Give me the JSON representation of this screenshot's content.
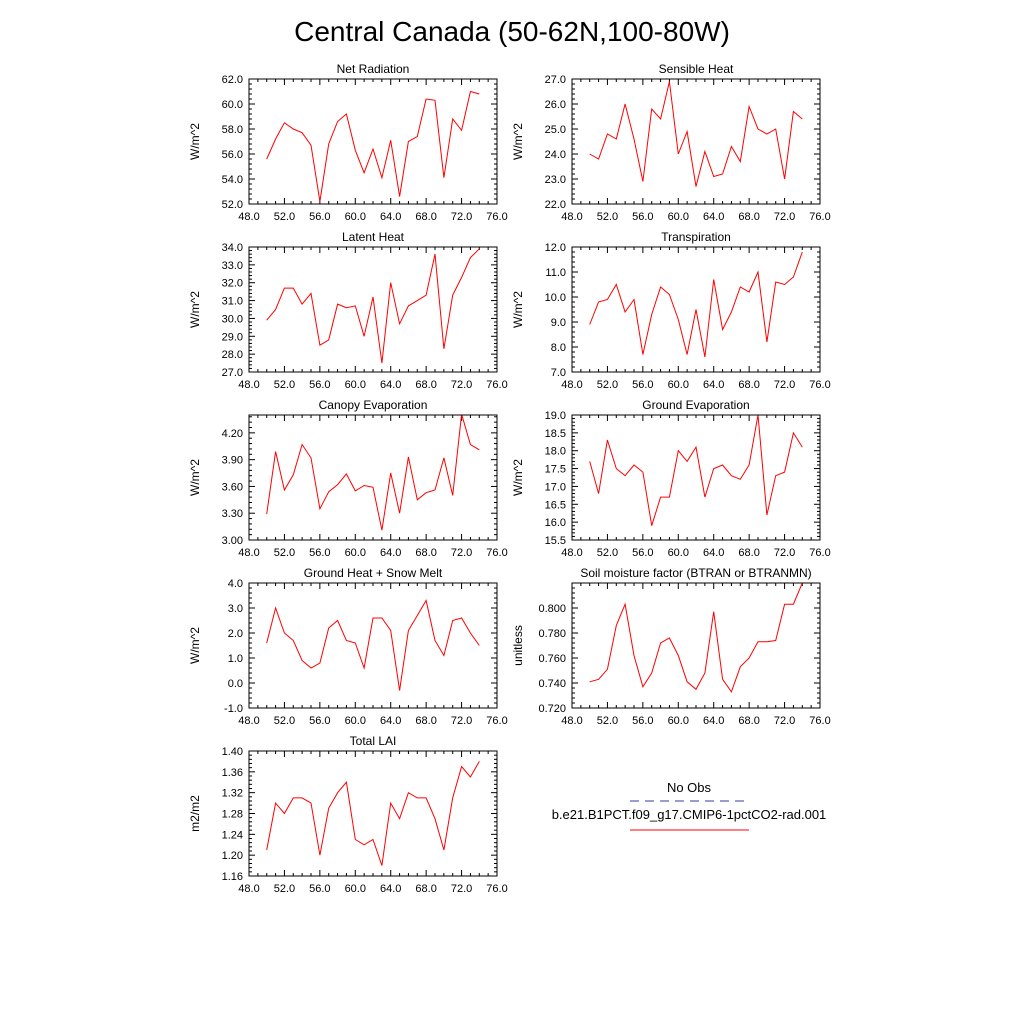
{
  "title": "Central Canada (50-62N,100-80W)",
  "legend": {
    "title": "No Obs",
    "entries": [
      {
        "label": "",
        "color": "#3a3aa8",
        "dash": true
      },
      {
        "label": "b.e21.B1PCT.f09_g17.CMIP6-1pctCO2-rad.001",
        "color": "#ff0000",
        "dash": false
      }
    ]
  },
  "line_color": "#ff0000",
  "chart_data": [
    {
      "type": "line",
      "title": "Net Radiation",
      "ylabel": "W/m^2",
      "xlim": [
        48,
        76
      ],
      "ylim": [
        52,
        62
      ],
      "xticks": [
        "48.0",
        "52.0",
        "56.0",
        "60.0",
        "64.0",
        "68.0",
        "72.0",
        "76.0"
      ],
      "yticks": [
        52,
        54,
        56,
        58,
        60,
        62
      ],
      "ytick_labels": [
        "52.0",
        "54.0",
        "56.0",
        "58.0",
        "60.0",
        "62.0"
      ],
      "x": [
        50,
        51,
        52,
        53,
        54,
        55,
        56,
        57,
        58,
        59,
        60,
        61,
        62,
        63,
        64,
        65,
        66,
        67,
        68,
        69,
        70,
        71,
        72,
        73,
        74
      ],
      "y": [
        55.6,
        57.2,
        58.5,
        58.0,
        57.7,
        56.7,
        52.2,
        56.8,
        58.6,
        59.2,
        56.3,
        54.5,
        56.4,
        54.1,
        57.1,
        52.6,
        57.0,
        57.4,
        60.4,
        60.3,
        54.1,
        58.8,
        57.9,
        61.0,
        60.8
      ]
    },
    {
      "type": "line",
      "title": "Sensible Heat",
      "ylabel": "W/m^2",
      "xlim": [
        48,
        76
      ],
      "ylim": [
        22,
        27
      ],
      "xticks": [
        "48.0",
        "52.0",
        "56.0",
        "60.0",
        "64.0",
        "68.0",
        "72.0",
        "76.0"
      ],
      "yticks": [
        22,
        23,
        24,
        25,
        26,
        27
      ],
      "ytick_labels": [
        "22.0",
        "23.0",
        "24.0",
        "25.0",
        "26.0",
        "27.0"
      ],
      "x": [
        50,
        51,
        52,
        53,
        54,
        55,
        56,
        57,
        58,
        59,
        60,
        61,
        62,
        63,
        64,
        65,
        66,
        67,
        68,
        69,
        70,
        71,
        72,
        73,
        74
      ],
      "y": [
        24.0,
        23.8,
        24.8,
        24.6,
        26.0,
        24.6,
        22.9,
        25.8,
        25.4,
        26.9,
        24.0,
        24.9,
        22.7,
        24.1,
        23.1,
        23.2,
        24.3,
        23.7,
        25.9,
        25.0,
        24.8,
        25.0,
        23.0,
        25.7,
        25.4
      ]
    },
    {
      "type": "line",
      "title": "Latent Heat",
      "ylabel": "W/m^2",
      "xlim": [
        48,
        76
      ],
      "ylim": [
        27,
        34
      ],
      "xticks": [
        "48.0",
        "52.0",
        "56.0",
        "60.0",
        "64.0",
        "68.0",
        "72.0",
        "76.0"
      ],
      "yticks": [
        27,
        28,
        29,
        30,
        31,
        32,
        33,
        34
      ],
      "ytick_labels": [
        "27.0",
        "28.0",
        "29.0",
        "30.0",
        "31.0",
        "32.0",
        "33.0",
        "34.0"
      ],
      "x": [
        50,
        51,
        52,
        53,
        54,
        55,
        56,
        57,
        58,
        59,
        60,
        61,
        62,
        63,
        64,
        65,
        66,
        67,
        68,
        69,
        70,
        71,
        72,
        73,
        74
      ],
      "y": [
        29.9,
        30.5,
        31.7,
        31.7,
        30.8,
        31.4,
        28.5,
        28.8,
        30.8,
        30.6,
        30.7,
        29.0,
        31.2,
        27.5,
        32.0,
        29.7,
        30.7,
        31.0,
        31.3,
        33.6,
        28.3,
        31.3,
        32.3,
        33.4,
        33.9
      ]
    },
    {
      "type": "line",
      "title": "Transpiration",
      "ylabel": "W/m^2",
      "xlim": [
        48,
        76
      ],
      "ylim": [
        7,
        12
      ],
      "xticks": [
        "48.0",
        "52.0",
        "56.0",
        "60.0",
        "64.0",
        "68.0",
        "72.0",
        "76.0"
      ],
      "yticks": [
        7,
        8,
        9,
        10,
        11,
        12
      ],
      "ytick_labels": [
        "7.0",
        "8.0",
        "9.0",
        "10.0",
        "11.0",
        "12.0"
      ],
      "x": [
        50,
        51,
        52,
        53,
        54,
        55,
        56,
        57,
        58,
        59,
        60,
        61,
        62,
        63,
        64,
        65,
        66,
        67,
        68,
        69,
        70,
        71,
        72,
        73,
        74
      ],
      "y": [
        8.9,
        9.8,
        9.9,
        10.5,
        9.4,
        9.9,
        7.7,
        9.3,
        10.4,
        10.1,
        9.1,
        7.7,
        9.5,
        7.6,
        10.7,
        8.7,
        9.4,
        10.4,
        10.2,
        11.0,
        8.2,
        10.6,
        10.5,
        10.8,
        11.8
      ]
    },
    {
      "type": "line",
      "title": "Canopy Evaporation",
      "ylabel": "W/m^2",
      "xlim": [
        48,
        76
      ],
      "ylim": [
        3.0,
        4.4
      ],
      "xticks": [
        "48.0",
        "52.0",
        "56.0",
        "60.0",
        "64.0",
        "68.0",
        "72.0",
        "76.0"
      ],
      "yticks": [
        3.0,
        3.3,
        3.6,
        3.9,
        4.2
      ],
      "ytick_labels": [
        "3.00",
        "3.30",
        "3.60",
        "3.90",
        "4.20"
      ],
      "x": [
        50,
        51,
        52,
        53,
        54,
        55,
        56,
        57,
        58,
        59,
        60,
        61,
        62,
        63,
        64,
        65,
        66,
        67,
        68,
        69,
        70,
        71,
        72,
        73,
        74
      ],
      "y": [
        3.29,
        3.99,
        3.56,
        3.73,
        4.07,
        3.92,
        3.35,
        3.54,
        3.62,
        3.74,
        3.55,
        3.61,
        3.59,
        3.11,
        3.75,
        3.3,
        3.93,
        3.45,
        3.53,
        3.56,
        3.92,
        3.5,
        4.41,
        4.07,
        4.01
      ]
    },
    {
      "type": "line",
      "title": "Ground Evaporation",
      "ylabel": "W/m^2",
      "xlim": [
        48,
        76
      ],
      "ylim": [
        15.5,
        19.0
      ],
      "xticks": [
        "48.0",
        "52.0",
        "56.0",
        "60.0",
        "64.0",
        "68.0",
        "72.0",
        "76.0"
      ],
      "yticks": [
        15.5,
        16.0,
        16.5,
        17.0,
        17.5,
        18.0,
        18.5,
        19.0
      ],
      "ytick_labels": [
        "15.5",
        "16.0",
        "16.5",
        "17.0",
        "17.5",
        "18.0",
        "18.5",
        "19.0"
      ],
      "x": [
        50,
        51,
        52,
        53,
        54,
        55,
        56,
        57,
        58,
        59,
        60,
        61,
        62,
        63,
        64,
        65,
        66,
        67,
        68,
        69,
        70,
        71,
        72,
        73,
        74
      ],
      "y": [
        17.7,
        16.8,
        18.3,
        17.5,
        17.3,
        17.6,
        17.4,
        15.9,
        16.7,
        16.7,
        18.0,
        17.7,
        18.1,
        16.7,
        17.5,
        17.6,
        17.3,
        17.2,
        17.6,
        19.0,
        16.2,
        17.3,
        17.4,
        18.5,
        18.1
      ]
    },
    {
      "type": "line",
      "title": "Ground Heat + Snow Melt",
      "ylabel": "W/m^2",
      "xlim": [
        48,
        76
      ],
      "ylim": [
        -1,
        4
      ],
      "xticks": [
        "48.0",
        "52.0",
        "56.0",
        "60.0",
        "64.0",
        "68.0",
        "72.0",
        "76.0"
      ],
      "yticks": [
        -1,
        0,
        1,
        2,
        3,
        4
      ],
      "ytick_labels": [
        "-1.0",
        "0.0",
        "1.0",
        "2.0",
        "3.0",
        "4.0"
      ],
      "x": [
        50,
        51,
        52,
        53,
        54,
        55,
        56,
        57,
        58,
        59,
        60,
        61,
        62,
        63,
        64,
        65,
        66,
        67,
        68,
        69,
        70,
        71,
        72,
        73,
        74
      ],
      "y": [
        1.6,
        3.0,
        2.0,
        1.7,
        0.9,
        0.6,
        0.8,
        2.2,
        2.5,
        1.7,
        1.6,
        0.6,
        2.6,
        2.6,
        2.1,
        -0.3,
        2.1,
        2.7,
        3.3,
        1.7,
        1.1,
        2.5,
        2.6,
        2.0,
        1.5
      ]
    },
    {
      "type": "line",
      "title": "Soil moisture factor (BTRAN or BTRANMN)",
      "ylabel": "unitless",
      "xlim": [
        48,
        76
      ],
      "ylim": [
        0.72,
        0.82
      ],
      "xticks": [
        "48.0",
        "52.0",
        "56.0",
        "60.0",
        "64.0",
        "68.0",
        "72.0",
        "76.0"
      ],
      "yticks": [
        0.72,
        0.74,
        0.76,
        0.78,
        0.8
      ],
      "ytick_labels": [
        "0.720",
        "0.740",
        "0.760",
        "0.780",
        "0.800"
      ],
      "x": [
        50,
        51,
        52,
        53,
        54,
        55,
        56,
        57,
        58,
        59,
        60,
        61,
        62,
        63,
        64,
        65,
        66,
        67,
        68,
        69,
        70,
        71,
        72,
        73,
        74
      ],
      "y": [
        0.741,
        0.743,
        0.751,
        0.786,
        0.803,
        0.762,
        0.737,
        0.748,
        0.772,
        0.776,
        0.762,
        0.741,
        0.735,
        0.748,
        0.797,
        0.743,
        0.733,
        0.753,
        0.76,
        0.773,
        0.773,
        0.774,
        0.803,
        0.803,
        0.82
      ]
    },
    {
      "type": "line",
      "title": "Total LAI",
      "ylabel": "m2/m2",
      "xlim": [
        48,
        76
      ],
      "ylim": [
        1.16,
        1.4
      ],
      "xticks": [
        "48.0",
        "52.0",
        "56.0",
        "60.0",
        "64.0",
        "68.0",
        "72.0",
        "76.0"
      ],
      "yticks": [
        1.16,
        1.2,
        1.24,
        1.28,
        1.32,
        1.36,
        1.4
      ],
      "ytick_labels": [
        "1.16",
        "1.20",
        "1.24",
        "1.28",
        "1.32",
        "1.36",
        "1.40"
      ],
      "x": [
        50,
        51,
        52,
        53,
        54,
        55,
        56,
        57,
        58,
        59,
        60,
        61,
        62,
        63,
        64,
        65,
        66,
        67,
        68,
        69,
        70,
        71,
        72,
        73,
        74
      ],
      "y": [
        1.21,
        1.3,
        1.28,
        1.31,
        1.31,
        1.3,
        1.2,
        1.29,
        1.32,
        1.34,
        1.23,
        1.22,
        1.23,
        1.18,
        1.3,
        1.27,
        1.32,
        1.31,
        1.31,
        1.27,
        1.21,
        1.31,
        1.37,
        1.35,
        1.38
      ]
    }
  ]
}
